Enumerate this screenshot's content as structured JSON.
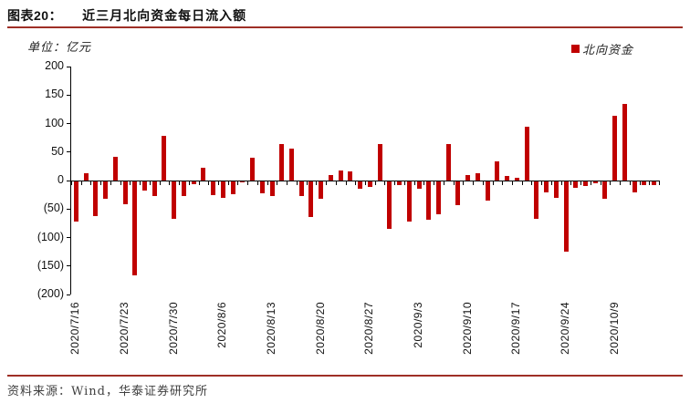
{
  "figure": {
    "label": "图表20：",
    "title": "近三月北向资金每日流入额",
    "unit_label": "单位：亿元",
    "source": "资料来源：Wind，华泰证券研究所",
    "accent_color": "#9e2f26"
  },
  "legend": {
    "items": [
      {
        "label": "北向资金",
        "color": "#c00000"
      }
    ]
  },
  "chart_data": {
    "type": "bar",
    "title": "近三月北向资金每日流入额",
    "ylabel": "亿元",
    "ylim": [
      -200,
      200
    ],
    "ytick_step": 50,
    "ytick_labels": [
      "200",
      "150",
      "100",
      "50",
      "0",
      "(50)",
      "(100)",
      "(150)",
      "(200)"
    ],
    "grid": false,
    "legend_entries": [
      "北向资金"
    ],
    "legend_position": "top-right",
    "bar_color": "#c00000",
    "n_bars": 60,
    "x_tick_labels": [
      "2020/7/16",
      "2020/7/23",
      "2020/7/30",
      "2020/8/6",
      "2020/8/13",
      "2020/8/20",
      "2020/8/27",
      "2020/9/3",
      "2020/9/10",
      "2020/9/17",
      "2020/9/24",
      "2020/10/9"
    ],
    "x_tick_positions": [
      0,
      5,
      10,
      15,
      20,
      25,
      30,
      35,
      40,
      45,
      50,
      55
    ],
    "series": [
      {
        "name": "北向资金",
        "values": [
          -70,
          13,
          -61,
          -30,
          41,
          -40,
          -165,
          -16,
          -25,
          78,
          -66,
          -25,
          -5,
          22,
          -24,
          -29,
          -22,
          -1,
          40,
          -20,
          -26,
          64,
          56,
          -25,
          -62,
          -31,
          10,
          17,
          16,
          -13,
          -10,
          64,
          -83,
          -6,
          -70,
          -12,
          -67,
          -57,
          64,
          -41,
          10,
          13,
          -33,
          33,
          8,
          5,
          95,
          -66,
          -19,
          -29,
          -123,
          -11,
          -8,
          -3,
          -30,
          113,
          135,
          -19,
          -6,
          -6
        ]
      }
    ]
  }
}
